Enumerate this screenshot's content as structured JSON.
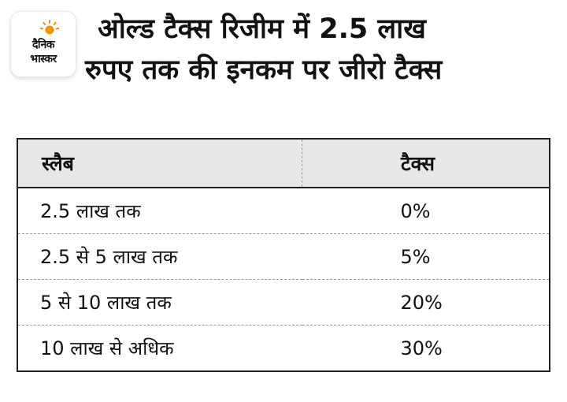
{
  "logo": {
    "line1": "दैनिक",
    "line2": "भास्कर",
    "sun_color": "#f39200",
    "icon": "sun-icon"
  },
  "title": {
    "line1": "ओल्ड टैक्स रिजीम में 2.5 लाख",
    "line2": "रुपए तक की इनकम पर जीरो टैक्स"
  },
  "table": {
    "headers": [
      "स्लैब",
      "टैक्स"
    ],
    "rows": [
      {
        "slab": "2.5 लाख तक",
        "tax": "0%"
      },
      {
        "slab": "2.5 से 5 लाख तक",
        "tax": "5%"
      },
      {
        "slab": "5 से 10  लाख तक",
        "tax": "20%"
      },
      {
        "slab": "10 लाख से अधिक",
        "tax": "30%"
      }
    ]
  },
  "colors": {
    "header_bg": "#e8e8e8",
    "text": "#111111",
    "border": "#222222"
  }
}
